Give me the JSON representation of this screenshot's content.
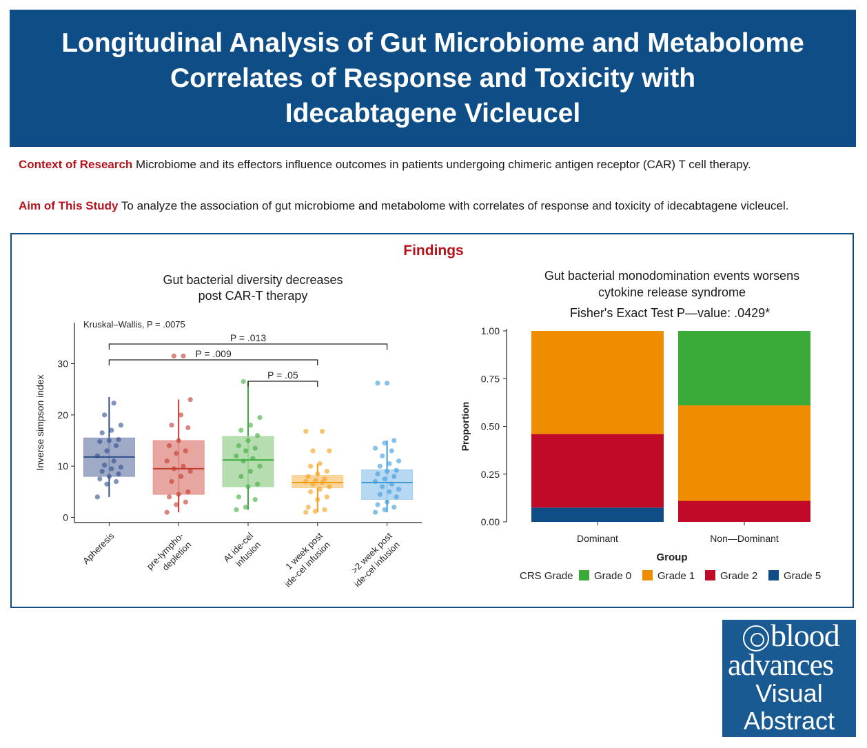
{
  "header": {
    "title": "Longitudinal Analysis of Gut Microbiome and Metabolome\nCorrelates of Response and Toxicity  with\nIdecabtagene Vicleucel"
  },
  "context": {
    "label": "Context of Research",
    "text": " Microbiome and its effectors influence outcomes in patients undergoing chimeric antigen receptor (CAR) T cell therapy."
  },
  "aim": {
    "label": "Aim of This Study",
    "text": " To analyze the association of gut microbiome and metabolome with correlates of response and toxicity of idecabtagene vicleucel."
  },
  "findings": {
    "title": "Findings"
  },
  "colors": {
    "brand_blue": "#0e4d86",
    "accent_red": "#b5121b",
    "grade0": "#3aab38",
    "grade1": "#f08c00",
    "grade2": "#c00a28",
    "grade5": "#0e4d86"
  },
  "chart_data": [
    {
      "type": "box",
      "title_lines": [
        "Gut bacterial diversity decreases",
        "post CAR-T therapy"
      ],
      "ylabel": "Inverse simpson index",
      "ylim": [
        -1,
        38
      ],
      "yticks": [
        0,
        10,
        20,
        30
      ],
      "test_label": "Kruskal–Wallis, P = .0075",
      "categories": [
        {
          "label": [
            "Apheresis"
          ],
          "color": "#2c4b8a",
          "fill": "#8e9bbd",
          "q1": 8,
          "median": 11.8,
          "q3": 15.5,
          "whisker_low": 4,
          "whisker_high": 23.5,
          "points": [
            4,
            6.5,
            7,
            7.5,
            8,
            8.5,
            9,
            9.5,
            9.8,
            10.2,
            11,
            12,
            13,
            14,
            14.8,
            15,
            15.2,
            16.5,
            17,
            18,
            20,
            22.3
          ]
        },
        {
          "label": [
            "pre-lympho-",
            "depletion"
          ],
          "color": "#c0392b",
          "fill": "#e49790",
          "q1": 4.5,
          "median": 9.5,
          "q3": 15,
          "whisker_low": 1,
          "whisker_high": 23,
          "points": [
            1,
            2.5,
            3,
            4,
            4.5,
            5,
            7,
            8,
            9,
            9.5,
            10,
            11,
            12.5,
            13,
            14,
            15,
            17.5,
            18,
            20,
            23,
            31.5,
            31.5
          ]
        },
        {
          "label": [
            "At ide-cel",
            "infusion"
          ],
          "color": "#3aab38",
          "fill": "#a9d7a2",
          "q1": 6,
          "median": 11.2,
          "q3": 15.8,
          "whisker_low": 1.5,
          "whisker_high": 26.5,
          "points": [
            1.5,
            2,
            3.5,
            4,
            6,
            6.5,
            8,
            9,
            10,
            11,
            11.5,
            12,
            13,
            13.5,
            14,
            15,
            16,
            17,
            18,
            19.5,
            26.5
          ]
        },
        {
          "label": [
            "1 week post",
            "ide-cel infusion"
          ],
          "color": "#f39c12",
          "fill": "#f9cf8c",
          "q1": 5.8,
          "median": 6.8,
          "q3": 8.2,
          "whisker_low": 1,
          "whisker_high": 10.5,
          "points": [
            1,
            1.2,
            1.5,
            2,
            3.5,
            4,
            5,
            5.5,
            6,
            6.5,
            6.8,
            7,
            7.2,
            7.5,
            8,
            8.5,
            9,
            10,
            10.5,
            13,
            13,
            16.8,
            16.8
          ]
        },
        {
          "label": [
            ">2 week post",
            "ide-cel infusion"
          ],
          "color": "#3a9ad9",
          "fill": "#a9d1f0",
          "q1": 3.5,
          "median": 6.8,
          "q3": 9.3,
          "whisker_low": 1,
          "whisker_high": 15,
          "points": [
            1,
            1.5,
            2,
            2.5,
            3,
            4,
            4.5,
            5,
            5.5,
            6,
            6.5,
            7,
            7.5,
            8,
            8.5,
            9,
            9.2,
            10,
            10.5,
            11,
            12,
            13,
            13.5,
            14.5,
            15,
            26.2,
            26.2
          ]
        }
      ],
      "comparisons": [
        {
          "from": 0,
          "to": 4,
          "label": "P = .013"
        },
        {
          "from": 0,
          "to": 3,
          "label": "P = .009"
        },
        {
          "from": 2,
          "to": 3,
          "label": "P = .05"
        }
      ]
    },
    {
      "type": "bar",
      "stacked": true,
      "title_lines": [
        "Gut bacterial monodomination events worsens",
        "cytokine release syndrome",
        "Fisher's Exact Test P—value: .0429*"
      ],
      "xlabel": "Group",
      "ylabel": "Proportion",
      "ylim": [
        0,
        1
      ],
      "yticks": [
        "0.00",
        "0.25",
        "0.50",
        "0.75",
        "1.00"
      ],
      "categories": [
        "Dominant",
        "Non—Dominant"
      ],
      "legend_title": "CRS Grade",
      "series": [
        {
          "name": "Grade 0",
          "color": "#3aab38",
          "values": [
            0.0,
            0.39
          ]
        },
        {
          "name": "Grade 1",
          "color": "#f08c00",
          "values": [
            0.54,
            0.5
          ]
        },
        {
          "name": "Grade 2",
          "color": "#c00a28",
          "values": [
            0.385,
            0.11
          ]
        },
        {
          "name": "Grade 5",
          "color": "#0e4d86",
          "values": [
            0.075,
            0.0
          ]
        }
      ],
      "stack_order": [
        "Grade 5",
        "Grade 2",
        "Grade 1",
        "Grade 0"
      ]
    }
  ],
  "logo": {
    "line1": "blood",
    "line2": "advances",
    "line3": "Visual",
    "line4": "Abstract"
  }
}
